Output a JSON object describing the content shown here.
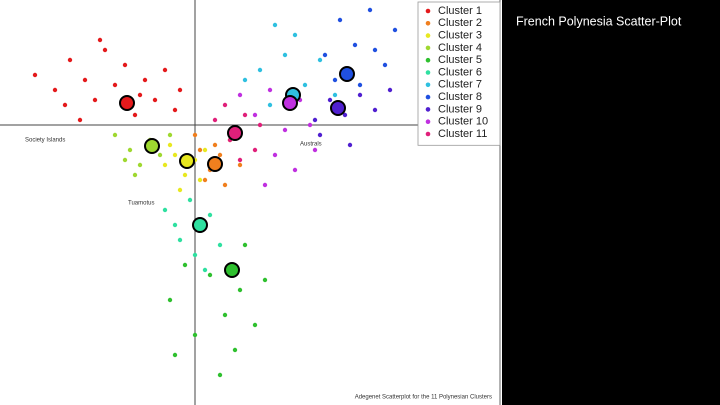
{
  "slide_title": "French Polynesia Scatter-Plot",
  "chart_data": {
    "type": "scatter",
    "xlim": [
      -3.9,
      6.1
    ],
    "ylim": [
      -5.6,
      2.5
    ],
    "legend": "top-right",
    "region_labels": [
      "Society Islands",
      "Australs",
      "Tuamotus"
    ],
    "caption": "Adegenet Scatterplot for the 11 Polynesian Clusters",
    "series": [
      {
        "name": "Cluster 1",
        "color": "#e41a1c",
        "centroid": [
          -1.36,
          0.44
        ],
        "x": [
          -3.2,
          -2.8,
          -2.5,
          -2.2,
          -2.0,
          -1.8,
          -1.6,
          -1.4,
          -1.2,
          -1.0,
          -0.8,
          -0.6,
          -0.4,
          -2.6,
          -1.9,
          -1.1,
          -0.3,
          -2.3
        ],
        "y": [
          1.0,
          0.7,
          1.3,
          0.9,
          0.5,
          1.5,
          0.8,
          1.2,
          0.2,
          0.9,
          0.5,
          1.1,
          0.3,
          0.4,
          1.7,
          0.6,
          0.7,
          0.1
        ]
      },
      {
        "name": "Cluster 2",
        "color": "#f07f1e",
        "centroid": [
          0.4,
          -0.78
        ],
        "x": [
          0.1,
          0.3,
          0.5,
          0.7,
          0.2,
          0.6,
          0.9,
          0.0,
          0.4
        ],
        "y": [
          -0.5,
          -0.9,
          -0.6,
          -0.3,
          -1.1,
          -1.2,
          -0.8,
          -0.2,
          -0.4
        ]
      },
      {
        "name": "Cluster 3",
        "color": "#e8e820",
        "centroid": [
          -0.16,
          -0.72
        ],
        "x": [
          -0.6,
          -0.4,
          -0.2,
          0.0,
          -0.3,
          0.1,
          -0.5,
          0.2
        ],
        "y": [
          -0.8,
          -0.6,
          -1.0,
          -0.7,
          -1.3,
          -1.1,
          -0.4,
          -0.5
        ]
      },
      {
        "name": "Cluster 4",
        "color": "#9fd830",
        "centroid": [
          -0.86,
          -0.42
        ],
        "x": [
          -1.6,
          -1.3,
          -1.1,
          -0.9,
          -0.7,
          -1.2,
          -0.5,
          -1.4
        ],
        "y": [
          -0.2,
          -0.5,
          -0.8,
          -0.3,
          -0.6,
          -1.0,
          -0.2,
          -0.7
        ]
      },
      {
        "name": "Cluster 5",
        "color": "#2fc02f",
        "centroid": [
          0.74,
          -2.9
        ],
        "x": [
          -0.5,
          0.0,
          0.3,
          0.6,
          1.0,
          1.4,
          0.8,
          -0.2,
          0.5,
          1.2,
          -0.4,
          0.9
        ],
        "y": [
          -3.5,
          -4.2,
          -3.0,
          -3.8,
          -2.4,
          -3.1,
          -4.5,
          -2.8,
          -5.0,
          -4.0,
          -4.6,
          -3.3
        ]
      },
      {
        "name": "Cluster 6",
        "color": "#2fe0a0",
        "centroid": [
          0.1,
          -2.0
        ],
        "x": [
          -0.6,
          -0.3,
          0.0,
          0.3,
          0.5,
          -0.4,
          0.2,
          -0.1
        ],
        "y": [
          -1.7,
          -2.3,
          -2.6,
          -1.8,
          -2.4,
          -2.0,
          -2.9,
          -1.5
        ]
      },
      {
        "name": "Cluster 7",
        "color": "#2fc0e0",
        "centroid": [
          1.96,
          0.6
        ],
        "x": [
          1.0,
          1.5,
          1.8,
          2.2,
          2.5,
          1.3,
          2.0,
          2.8,
          1.6
        ],
        "y": [
          0.9,
          0.4,
          1.4,
          0.8,
          1.3,
          1.1,
          1.8,
          0.6,
          2.0
        ]
      },
      {
        "name": "Cluster 8",
        "color": "#2050e0",
        "centroid": [
          3.04,
          1.02
        ],
        "x": [
          2.6,
          2.9,
          3.2,
          3.5,
          3.8,
          4.0,
          3.3,
          2.8,
          3.6
        ],
        "y": [
          1.4,
          2.1,
          1.6,
          2.3,
          1.2,
          1.9,
          0.8,
          0.9,
          1.5
        ]
      },
      {
        "name": "Cluster 9",
        "color": "#5020d0",
        "centroid": [
          2.86,
          0.34
        ],
        "x": [
          2.4,
          2.7,
          3.0,
          3.3,
          3.6,
          2.5,
          3.1,
          3.9
        ],
        "y": [
          0.1,
          0.5,
          0.2,
          0.6,
          0.3,
          -0.2,
          -0.4,
          0.7
        ]
      },
      {
        "name": "Cluster 10",
        "color": "#c030e0",
        "centroid": [
          1.9,
          0.44
        ],
        "x": [
          1.2,
          1.5,
          1.8,
          2.1,
          2.3,
          1.6,
          2.0,
          0.9,
          2.4,
          1.4
        ],
        "y": [
          0.2,
          0.7,
          -0.1,
          0.5,
          0.0,
          -0.6,
          -0.9,
          0.6,
          -0.5,
          -1.2
        ]
      },
      {
        "name": "Cluster 11",
        "color": "#e0207a",
        "centroid": [
          0.8,
          -0.16
        ],
        "x": [
          0.4,
          0.7,
          1.0,
          1.2,
          0.6,
          0.9,
          1.3
        ],
        "y": [
          0.1,
          -0.3,
          0.2,
          -0.5,
          0.4,
          -0.7,
          0.0
        ]
      }
    ]
  }
}
